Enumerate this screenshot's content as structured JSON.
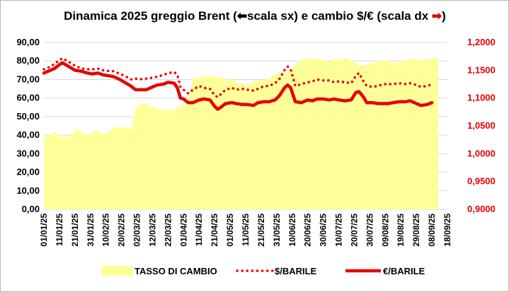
{
  "chart_data": {
    "type": "area+line",
    "title": {
      "part1": "Dinamica 2025 greggio Brent (",
      "icon_left": "arrow-left-circle-icon",
      "part2": "scala sx) e cambio $/€ (scala dx ",
      "icon_right": "arrow-right-circle-icon",
      "part3": ")"
    },
    "colors": {
      "area": "#ffff99",
      "brent": "#e60000",
      "left_axis": "#000000",
      "right_axis": "#e60000"
    },
    "left_axis": {
      "ylim": [
        0,
        90
      ],
      "ticks": [
        "0,00",
        "10,00",
        "20,00",
        "30,00",
        "40,00",
        "50,00",
        "60,00",
        "70,00",
        "80,00",
        "90,00"
      ]
    },
    "right_axis": {
      "ylim": [
        0.9,
        1.2
      ],
      "ticks": [
        "0,9000",
        "0,9500",
        "1,0000",
        "1,0500",
        "1,1000",
        "1,1500",
        "1,2000"
      ]
    },
    "x_axis": {
      "ticks": [
        "01/01/25",
        "11/01/25",
        "21/01/25",
        "31/01/25",
        "10/02/25",
        "20/02/25",
        "02/03/25",
        "12/03/25",
        "22/03/25",
        "01/04/25",
        "11/04/25",
        "21/04/25",
        "01/05/25",
        "11/05/25",
        "21/05/25",
        "31/05/25",
        "10/06/25",
        "20/06/25",
        "30/06/25",
        "10/07/25",
        "20/07/25",
        "30/07/25",
        "09/08/25",
        "19/08/25",
        "29/08/25",
        "08/09/25",
        "18/09/25"
      ]
    },
    "grid": {
      "horizontal": true,
      "vertical": false
    },
    "legend_position": "bottom",
    "series": [
      {
        "name": "TASSO DI CAMBIO",
        "type": "area",
        "axis": "right",
        "points": [
          [
            0,
            1.035
          ],
          [
            3,
            1.03
          ],
          [
            7,
            1.04
          ],
          [
            10,
            1.03
          ],
          [
            14,
            1.032
          ],
          [
            17,
            1.03
          ],
          [
            21,
            1.045
          ],
          [
            24,
            1.04
          ],
          [
            28,
            1.03
          ],
          [
            31,
            1.04
          ],
          [
            35,
            1.04
          ],
          [
            38,
            1.035
          ],
          [
            42,
            1.04
          ],
          [
            45,
            1.048
          ],
          [
            49,
            1.045
          ],
          [
            52,
            1.048
          ],
          [
            56,
            1.042
          ],
          [
            59,
            1.08
          ],
          [
            63,
            1.09
          ],
          [
            66,
            1.09
          ],
          [
            70,
            1.085
          ],
          [
            73,
            1.08
          ],
          [
            77,
            1.08
          ],
          [
            80,
            1.08
          ],
          [
            84,
            1.078
          ],
          [
            87,
            1.085
          ],
          [
            90,
            1.09
          ],
          [
            93,
            1.095
          ],
          [
            96,
            1.135
          ],
          [
            100,
            1.138
          ],
          [
            103,
            1.14
          ],
          [
            107,
            1.14
          ],
          [
            110,
            1.138
          ],
          [
            114,
            1.138
          ],
          [
            117,
            1.13
          ],
          [
            121,
            1.135
          ],
          [
            124,
            1.128
          ],
          [
            128,
            1.126
          ],
          [
            131,
            1.124
          ],
          [
            135,
            1.128
          ],
          [
            138,
            1.133
          ],
          [
            142,
            1.132
          ],
          [
            145,
            1.135
          ],
          [
            149,
            1.142
          ],
          [
            152,
            1.148
          ],
          [
            155,
            1.143
          ],
          [
            159,
            1.15
          ],
          [
            162,
            1.16
          ],
          [
            166,
            1.168
          ],
          [
            170,
            1.172
          ],
          [
            173,
            1.17
          ],
          [
            176,
            1.17
          ],
          [
            180,
            1.168
          ],
          [
            184,
            1.165
          ],
          [
            187,
            1.172
          ],
          [
            190,
            1.168
          ],
          [
            194,
            1.172
          ],
          [
            198,
            1.168
          ],
          [
            201,
            1.163
          ],
          [
            204,
            1.158
          ],
          [
            208,
            1.16
          ],
          [
            212,
            1.163
          ],
          [
            215,
            1.165
          ],
          [
            219,
            1.168
          ],
          [
            222,
            1.168
          ],
          [
            225,
            1.162
          ],
          [
            229,
            1.165
          ],
          [
            233,
            1.168
          ],
          [
            236,
            1.17
          ],
          [
            240,
            1.17
          ],
          [
            243,
            1.168
          ],
          [
            247,
            1.17
          ],
          [
            250,
            1.172
          ],
          [
            254,
            1.174
          ]
        ]
      },
      {
        "name": "$/BARILE",
        "type": "line",
        "style": "dotted",
        "axis": "left",
        "points": [
          [
            0,
            75.5
          ],
          [
            3,
            76.5
          ],
          [
            7,
            78.5
          ],
          [
            10,
            80.5
          ],
          [
            12,
            81.5
          ],
          [
            14,
            80.5
          ],
          [
            17,
            79.0
          ],
          [
            20,
            77.5
          ],
          [
            24,
            76.0
          ],
          [
            28,
            75.5
          ],
          [
            31,
            75.5
          ],
          [
            35,
            75.8
          ],
          [
            38,
            75.0
          ],
          [
            42,
            74.5
          ],
          [
            45,
            74.5
          ],
          [
            49,
            73.0
          ],
          [
            52,
            72.0
          ],
          [
            56,
            70.0
          ],
          [
            59,
            70.5
          ],
          [
            63,
            70.2
          ],
          [
            66,
            70.5
          ],
          [
            70,
            71.0
          ],
          [
            73,
            71.5
          ],
          [
            77,
            72.5
          ],
          [
            80,
            73.5
          ],
          [
            84,
            74.0
          ],
          [
            86,
            72.5
          ],
          [
            88,
            66.0
          ],
          [
            90,
            64.5
          ],
          [
            93,
            62.5
          ],
          [
            96,
            64.5
          ],
          [
            100,
            66.5
          ],
          [
            103,
            65.5
          ],
          [
            107,
            65.0
          ],
          [
            110,
            61.5
          ],
          [
            112,
            60.5
          ],
          [
            114,
            62.0
          ],
          [
            117,
            64.5
          ],
          [
            121,
            65.5
          ],
          [
            124,
            64.5
          ],
          [
            128,
            65.0
          ],
          [
            131,
            64.5
          ],
          [
            135,
            64.0
          ],
          [
            138,
            65.0
          ],
          [
            142,
            66.5
          ],
          [
            145,
            66.5
          ],
          [
            149,
            68.0
          ],
          [
            152,
            70.5
          ],
          [
            155,
            75.0
          ],
          [
            157,
            77.0
          ],
          [
            159,
            75.5
          ],
          [
            162,
            66.5
          ],
          [
            166,
            67.5
          ],
          [
            170,
            68.5
          ],
          [
            173,
            69.0
          ],
          [
            176,
            70.0
          ],
          [
            180,
            69.5
          ],
          [
            184,
            69.5
          ],
          [
            187,
            68.5
          ],
          [
            190,
            69.0
          ],
          [
            194,
            68.5
          ],
          [
            198,
            68.0
          ],
          [
            201,
            72.0
          ],
          [
            203,
            73.5
          ],
          [
            206,
            69.0
          ],
          [
            208,
            66.5
          ],
          [
            212,
            66.0
          ],
          [
            215,
            66.5
          ],
          [
            219,
            67.5
          ],
          [
            222,
            67.5
          ],
          [
            225,
            67.5
          ],
          [
            229,
            68.0
          ],
          [
            233,
            67.5
          ],
          [
            236,
            68.0
          ],
          [
            240,
            67.0
          ],
          [
            243,
            66.0
          ],
          [
            247,
            66.5
          ],
          [
            250,
            67.5
          ]
        ]
      },
      {
        "name": "€/BARILE",
        "type": "line",
        "style": "solid",
        "axis": "left",
        "points": [
          [
            0,
            73.5
          ],
          [
            3,
            74.5
          ],
          [
            7,
            76.0
          ],
          [
            10,
            78.0
          ],
          [
            12,
            79.0
          ],
          [
            14,
            78.0
          ],
          [
            17,
            76.5
          ],
          [
            20,
            75.0
          ],
          [
            24,
            74.5
          ],
          [
            28,
            73.5
          ],
          [
            31,
            73.0
          ],
          [
            35,
            73.5
          ],
          [
            38,
            72.5
          ],
          [
            42,
            72.0
          ],
          [
            45,
            71.5
          ],
          [
            49,
            70.0
          ],
          [
            52,
            68.5
          ],
          [
            56,
            66.5
          ],
          [
            59,
            64.5
          ],
          [
            63,
            64.5
          ],
          [
            66,
            64.5
          ],
          [
            70,
            66.0
          ],
          [
            73,
            67.0
          ],
          [
            77,
            67.5
          ],
          [
            80,
            68.5
          ],
          [
            84,
            68.0
          ],
          [
            86,
            65.5
          ],
          [
            88,
            60.0
          ],
          [
            90,
            59.5
          ],
          [
            93,
            57.5
          ],
          [
            96,
            57.5
          ],
          [
            100,
            59.0
          ],
          [
            103,
            59.5
          ],
          [
            107,
            59.0
          ],
          [
            110,
            55.5
          ],
          [
            112,
            54.0
          ],
          [
            114,
            55.0
          ],
          [
            117,
            57.0
          ],
          [
            121,
            57.5
          ],
          [
            124,
            57.0
          ],
          [
            128,
            56.5
          ],
          [
            131,
            56.5
          ],
          [
            135,
            56.0
          ],
          [
            138,
            57.5
          ],
          [
            142,
            58.0
          ],
          [
            145,
            58.0
          ],
          [
            149,
            59.0
          ],
          [
            152,
            61.5
          ],
          [
            155,
            65.5
          ],
          [
            157,
            67.0
          ],
          [
            159,
            65.5
          ],
          [
            162,
            58.0
          ],
          [
            166,
            57.5
          ],
          [
            170,
            59.0
          ],
          [
            173,
            58.5
          ],
          [
            176,
            59.5
          ],
          [
            180,
            59.5
          ],
          [
            184,
            59.0
          ],
          [
            187,
            59.5
          ],
          [
            190,
            59.0
          ],
          [
            194,
            58.5
          ],
          [
            198,
            59.0
          ],
          [
            201,
            63.0
          ],
          [
            203,
            63.5
          ],
          [
            206,
            60.5
          ],
          [
            208,
            57.5
          ],
          [
            212,
            57.5
          ],
          [
            215,
            57.0
          ],
          [
            219,
            57.0
          ],
          [
            222,
            57.0
          ],
          [
            225,
            57.5
          ],
          [
            229,
            58.0
          ],
          [
            233,
            58.0
          ],
          [
            236,
            58.5
          ],
          [
            240,
            57.0
          ],
          [
            243,
            56.0
          ],
          [
            247,
            56.5
          ],
          [
            250,
            57.5
          ]
        ]
      }
    ],
    "x_note": "x values are days after 01/01/25"
  }
}
